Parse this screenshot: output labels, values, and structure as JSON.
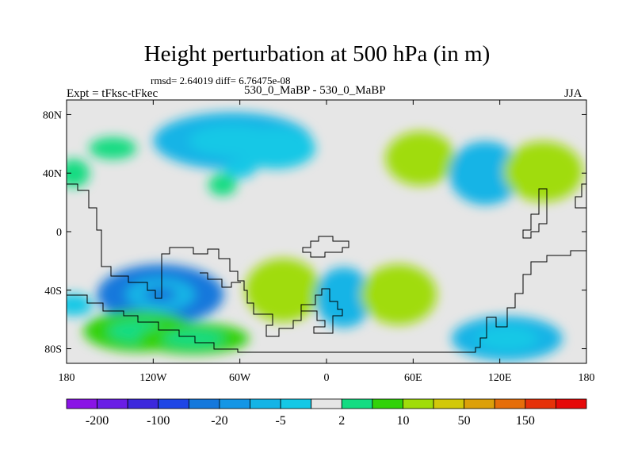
{
  "header": {
    "title": "Height perturbation at 500 hPa (in m)",
    "stats": "rmsd= 2.64019 diff= 6.76475e-08",
    "expt": "Expt = tFksc-tFkec",
    "case": "530_0_MaBP - 530_0_MaBP",
    "season": "JJA"
  },
  "chart_data": {
    "type": "heatmap",
    "title": "Height perturbation at 500 hPa (in m)",
    "xlabel": "",
    "ylabel": "",
    "xlim": [
      -180,
      180
    ],
    "ylim": [
      -90,
      90
    ],
    "x_ticks": [
      {
        "value": -180,
        "label": "180"
      },
      {
        "value": -120,
        "label": "120W"
      },
      {
        "value": -60,
        "label": "60W"
      },
      {
        "value": 0,
        "label": "0"
      },
      {
        "value": 60,
        "label": "60E"
      },
      {
        "value": 120,
        "label": "120E"
      },
      {
        "value": 180,
        "label": "180"
      }
    ],
    "y_ticks": [
      {
        "value": 80,
        "label": "80N"
      },
      {
        "value": 40,
        "label": "40N"
      },
      {
        "value": 0,
        "label": "0"
      },
      {
        "value": -40,
        "label": "40S"
      },
      {
        "value": -80,
        "label": "80S"
      }
    ],
    "levels": [
      -200,
      -150,
      -100,
      -50,
      -20,
      -10,
      -5,
      -2,
      2,
      5,
      10,
      20,
      50,
      100,
      150,
      200
    ],
    "colorbar_labels": [
      {
        "level": -200,
        "label": "-200"
      },
      {
        "level": -100,
        "label": "-100"
      },
      {
        "level": -20,
        "label": "-20"
      },
      {
        "level": -5,
        "label": "-5"
      },
      {
        "level": 2,
        "label": "2"
      },
      {
        "level": 10,
        "label": "10"
      },
      {
        "level": 50,
        "label": "50"
      },
      {
        "level": 150,
        "label": "150"
      }
    ],
    "colors": [
      "#8a14e6",
      "#6a1ee6",
      "#3c28dc",
      "#1e46e6",
      "#1478dc",
      "#1496e6",
      "#14b4e6",
      "#14c8e6",
      "#e6e6e6",
      "#14dc82",
      "#32d20a",
      "#a0dc0a",
      "#d2c80a",
      "#dca00a",
      "#e66e0a",
      "#e6320a",
      "#e60a0a"
    ],
    "field_features": [
      {
        "name": "north-pacific-east",
        "lon": -148,
        "lat": 57,
        "value": 4
      },
      {
        "name": "north-pacific-low",
        "lon": -65,
        "lat": 62,
        "value": -6
      },
      {
        "name": "north-atlantic-west",
        "lon": -60,
        "lat": 43,
        "value": -4
      },
      {
        "name": "north-atlantic-mid",
        "lon": -35,
        "lat": 57,
        "value": -4
      },
      {
        "name": "nw-pacific-small",
        "lon": -72,
        "lat": 32,
        "value": 3
      },
      {
        "name": "dateline-40n",
        "lon": -175,
        "lat": 40,
        "value": 3
      },
      {
        "name": "eastern-europe-high",
        "lon": 65,
        "lat": 50,
        "value": 10
      },
      {
        "name": "central-asia-low",
        "lon": 110,
        "lat": 40,
        "value": -10
      },
      {
        "name": "east-asia-high",
        "lon": 150,
        "lat": 41,
        "value": 10
      },
      {
        "name": "s-pacific-low",
        "lon": -115,
        "lat": -43,
        "value": -25
      },
      {
        "name": "s-pacific-high",
        "lon": -130,
        "lat": -68,
        "value": 6
      },
      {
        "name": "s-pacific-high-b",
        "lon": -92,
        "lat": -73,
        "value": 6
      },
      {
        "name": "s-atlantic-high",
        "lon": -30,
        "lat": -40,
        "value": 15
      },
      {
        "name": "s-atlantic-low",
        "lon": 12,
        "lat": -45,
        "value": -8
      },
      {
        "name": "indian-ocean-high",
        "lon": 50,
        "lat": -43,
        "value": 15
      },
      {
        "name": "indian-ocean-low",
        "lon": 125,
        "lat": -73,
        "value": -6
      },
      {
        "name": "southern-low-west",
        "lon": -175,
        "lat": -50,
        "value": -3
      }
    ]
  }
}
